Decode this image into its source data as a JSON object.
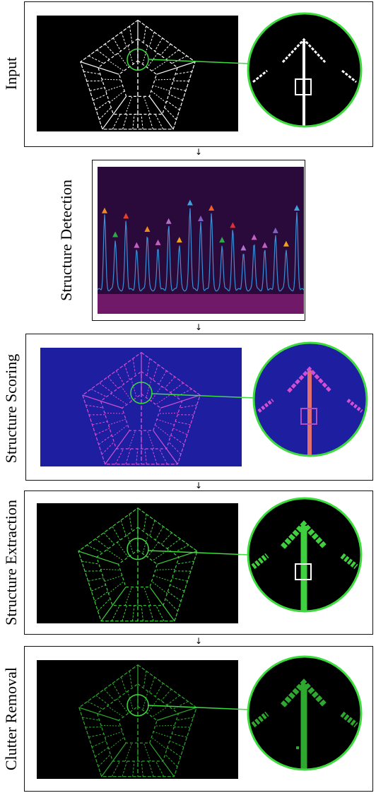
{
  "stages": [
    {
      "id": "input",
      "label": "Input"
    },
    {
      "id": "detection",
      "label": "Structure Detection"
    },
    {
      "id": "scoring",
      "label": "Structure Scoring"
    },
    {
      "id": "extraction",
      "label": "Structure Extraction"
    },
    {
      "id": "removal",
      "label": "Clutter Removal"
    }
  ],
  "arrow_glyph": "↓",
  "colors": {
    "highlight_ring": "#3ddc3d",
    "input_lines": "#ffffff",
    "scoring_bg": "#1e1ea0",
    "scoring_lines": "#d24fd2",
    "extraction_lines": "#3fcf3f",
    "removal_lines": "#2ea82e",
    "spectrum_bg": "#2a0a3a",
    "spectrum_line": "#3b8fd8"
  },
  "spectrum_peaks": [
    {
      "h": 0.56,
      "c": "#f08a20"
    },
    {
      "h": 0.38,
      "c": "#2fa84a"
    },
    {
      "h": 0.52,
      "c": "#e2402a"
    },
    {
      "h": 0.3,
      "c": "#c060c0"
    },
    {
      "h": 0.42,
      "c": "#f08a20"
    },
    {
      "h": 0.32,
      "c": "#c060c0"
    },
    {
      "h": 0.48,
      "c": "#b070c0"
    },
    {
      "h": 0.34,
      "c": "#f0a020"
    },
    {
      "h": 0.62,
      "c": "#40a0e0"
    },
    {
      "h": 0.5,
      "c": "#8060c0"
    },
    {
      "h": 0.58,
      "c": "#f06020"
    },
    {
      "h": 0.34,
      "c": "#2fa84a"
    },
    {
      "h": 0.45,
      "c": "#e03030"
    },
    {
      "h": 0.28,
      "c": "#b070d0"
    },
    {
      "h": 0.36,
      "c": "#c060c0"
    },
    {
      "h": 0.3,
      "c": "#c060c0"
    },
    {
      "h": 0.41,
      "c": "#8060c0"
    },
    {
      "h": 0.31,
      "c": "#f0a020"
    },
    {
      "h": 0.58,
      "c": "#40a0e0"
    }
  ]
}
